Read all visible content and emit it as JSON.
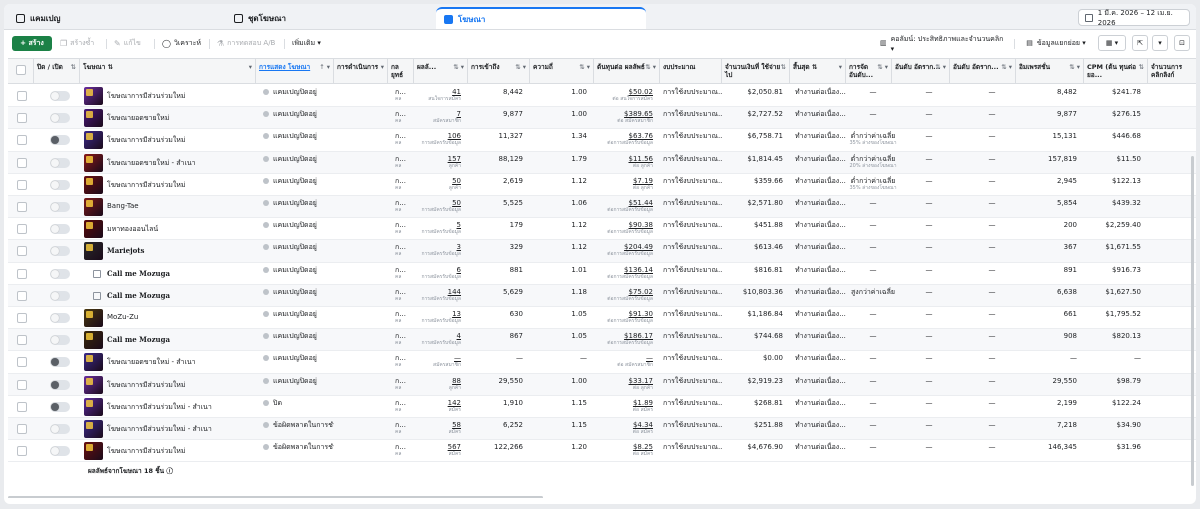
{
  "tabs": [
    {
      "label": "แคมเปญ",
      "icon": "folder-icon"
    },
    {
      "label": "ชุดโฆษณา",
      "icon": "grid-icon"
    },
    {
      "label": "โฆษณา",
      "icon": "ad-icon"
    }
  ],
  "date_range": "1 มี.ค. 2026 – 12 เม.ย. 2026",
  "toolbar": {
    "create": "+ สร้าง",
    "duplicate": "สร้างซ้ำ",
    "edit": "แก้ไข",
    "test": "วิเคราะห์",
    "ab_test": "การทดสอบ A/B",
    "more": "เพิ่มเติม ▾",
    "columns": "คอลัมน์: ประสิทธิภาพและจำนวนคลิก ▾",
    "breakdown": "ข้อมูลแยกย่อย ▾"
  },
  "headers": {
    "onoff": "ปิด / เปิด",
    "ad": "โฆษณา",
    "delivery": "การแสดง โฆษณา",
    "actions": "การดำเนินการ",
    "bid": "กล ยุทธ์",
    "results": "ผลลั...",
    "reach": "การเข้าถึง",
    "frequency": "ความถี่",
    "cost_per_result": "ต้นทุนต่อ ผลลัพธ์",
    "budget": "งบประมาณ",
    "amount_spent": "จำนวนเงินที่ ใช้จ่ายไป",
    "ends": "สิ้นสุด",
    "ranking": "การจัด อันดับ...",
    "quality": "อันดับ อัตราก...",
    "conv": "อันดับ อัตราก...",
    "impressions": "อิมเพรสชั่น",
    "cpm": "CPM (ต้น ทุนต่อยอ...",
    "clicks": "จำนวนการ คลิกลิงก์"
  },
  "delivery_labels": {
    "active": "แคมเปญปิดอยู่",
    "off": "ปิด",
    "error": "ข้อผิดพลาดในการชำระ"
  },
  "rows": [
    {
      "name": "โฆษณาการมีส่วนร่วมใหม่",
      "delivery": "แคมเปญปิดอยู่",
      "results": "41",
      "rsub": "สนใจการสมัคร",
      "reach": "8,442",
      "freq": "1.00",
      "cpr": "$50.02",
      "cprsub": "ต่อ สนใจการสมัคร",
      "budget": "การใช้งบประมาณ...",
      "spent": "$2,050.81",
      "ends": "ทำงานต่อเนื่อง...",
      "rank": "—",
      "rsub2": "",
      "q": "—",
      "c": "—",
      "impr": "8,482",
      "cpm": "$241.78",
      "thumb": "#6b2fa0",
      "toggle": "lt"
    },
    {
      "name": "โฆษณายอดขายใหม่",
      "delivery": "แคมเปญปิดอยู่",
      "results": "7",
      "rsub": "สมัครสมาชิก",
      "reach": "9,877",
      "freq": "1.00",
      "cpr": "$389.65",
      "cprsub": "ต่อ สมัครสมาชิก",
      "budget": "การใช้งบประมาณ...",
      "spent": "$2,727.52",
      "ends": "ทำงานต่อเนื่อง...",
      "rank": "—",
      "rsub2": "",
      "q": "—",
      "c": "—",
      "impr": "9,877",
      "cpm": "$276.15",
      "thumb": "#4a1a7a",
      "toggle": "lt"
    },
    {
      "name": "โฆษณาการมีส่วนร่วมใหม่",
      "delivery": "แคมเปญปิดอยู่",
      "results": "106",
      "rsub": "การสมัครรับข้อมูล",
      "reach": "11,327",
      "freq": "1.34",
      "cpr": "$63.76",
      "cprsub": "ต่อการสมัครรับข้อมูล",
      "budget": "การใช้งบประมาณ...",
      "spent": "$6,758.71",
      "ends": "ทำงานต่อเนื่อง...",
      "rank": "ต่ำกว่าค่าเฉลี่ย",
      "rsub2": "35% ล่างของโฆษณา",
      "q": "—",
      "c": "—",
      "impr": "15,131",
      "cpm": "$446.68",
      "thumb": "#3b2a8a",
      "toggle": "dk"
    },
    {
      "name": "โฆษณายอดขายใหม่ - สำเนา",
      "delivery": "แคมเปญปิดอยู่",
      "results": "157",
      "rsub": "ลูกค้า",
      "reach": "88,129",
      "freq": "1.79",
      "cpr": "$11.56",
      "cprsub": "ต่อ ลูกค้า",
      "budget": "การใช้งบประมาณ...",
      "spent": "$1,814.45",
      "ends": "ทำงานต่อเนื่อง...",
      "rank": "ต่ำกว่าค่าเฉลี่ย",
      "rsub2": "20% ล่างของโฆษณา",
      "q": "—",
      "c": "—",
      "impr": "157,819",
      "cpm": "$11.50",
      "thumb": "#8a1a1a",
      "toggle": "lt"
    },
    {
      "name": "โฆษณาการมีส่วนร่วมใหม่",
      "delivery": "แคมเปญปิดอยู่",
      "results": "50",
      "rsub": "ลูกค้า",
      "reach": "2,619",
      "freq": "1.12",
      "cpr": "$7.19",
      "cprsub": "ต่อ ลูกค้า",
      "budget": "การใช้งบประมาณ...",
      "spent": "$359.66",
      "ends": "ทำงานต่อเนื่อง...",
      "rank": "ต่ำกว่าค่าเฉลี่ย",
      "rsub2": "35% ล่างของโฆษณา",
      "q": "—",
      "c": "—",
      "impr": "2,945",
      "cpm": "$122.13",
      "thumb": "#6a1010",
      "toggle": "lt"
    },
    {
      "name": "Bang-Tae",
      "delivery": "แคมเปญปิดอยู่",
      "results": "50",
      "rsub": "การสมัครรับข้อมูล",
      "reach": "5,525",
      "freq": "1.06",
      "cpr": "$51.44",
      "cprsub": "ต่อการสมัครรับข้อมูล",
      "budget": "การใช้งบประมาณ...",
      "spent": "$2,571.80",
      "ends": "ทำงานต่อเนื่อง...",
      "rank": "—",
      "rsub2": "",
      "q": "—",
      "c": "—",
      "impr": "5,854",
      "cpm": "$439.32",
      "thumb": "#7a1a1a",
      "toggle": "lt"
    },
    {
      "name": "มหาทองออนไลน์",
      "delivery": "แคมเปญปิดอยู่",
      "results": "5",
      "rsub": "การสมัครรับข้อมูล",
      "reach": "179",
      "freq": "1.12",
      "cpr": "$90.38",
      "cprsub": "ต่อการสมัครรับข้อมูล",
      "budget": "การใช้งบประมาณ...",
      "spent": "$451.88",
      "ends": "ทำงานต่อเนื่อง...",
      "rank": "—",
      "rsub2": "",
      "q": "—",
      "c": "—",
      "impr": "200",
      "cpm": "$2,259.40",
      "thumb": "#5a0a0a",
      "toggle": "lt"
    },
    {
      "name": "Mariejots",
      "delivery": "แคมเปญปิดอยู่",
      "results": "3",
      "rsub": "การสมัครรับข้อมูล",
      "reach": "329",
      "freq": "1.12",
      "cpr": "$204.49",
      "cprsub": "ต่อการสมัครรับข้อมูล",
      "budget": "การใช้งบประมาณ...",
      "spent": "$613.46",
      "ends": "ทำงานต่อเนื่อง...",
      "rank": "—",
      "rsub2": "",
      "q": "—",
      "c": "—",
      "impr": "367",
      "cpm": "$1,671.55",
      "thumb": "#2a2a2a",
      "toggle": "lt",
      "bold": true
    },
    {
      "name": "Call me Mozuga",
      "delivery": "แคมเปญปิดอยู่",
      "results": "6",
      "rsub": "การสมัครรับข้อมูล",
      "reach": "881",
      "freq": "1.01",
      "cpr": "$136.14",
      "cprsub": "ต่อการสมัครรับข้อมูล",
      "budget": "การใช้งบประมาณ...",
      "spent": "$816.81",
      "ends": "ทำงานต่อเนื่อง...",
      "rank": "—",
      "rsub2": "",
      "q": "—",
      "c": "—",
      "impr": "891",
      "cpm": "$916.73",
      "thumb": "",
      "toggle": "lt",
      "bold": true
    },
    {
      "name": "Call me Mozuga",
      "delivery": "แคมเปญปิดอยู่",
      "results": "144",
      "rsub": "การสมัครรับข้อมูล",
      "reach": "5,629",
      "freq": "1.18",
      "cpr": "$75.02",
      "cprsub": "ต่อการสมัครรับข้อมูล",
      "budget": "การใช้งบประมาณ...",
      "spent": "$10,803.36",
      "ends": "ทำงานต่อเนื่อง...",
      "rank": "สูงกว่าค่าเฉลี่ย",
      "rsub2": "",
      "q": "—",
      "c": "—",
      "impr": "6,638",
      "cpm": "$1,627.50",
      "thumb": "",
      "toggle": "lt",
      "bold": true
    },
    {
      "name": "MoZu-Zu",
      "delivery": "แคมเปญปิดอยู่",
      "results": "13",
      "rsub": "การสมัครรับข้อมูล",
      "reach": "630",
      "freq": "1.05",
      "cpr": "$91.30",
      "cprsub": "ต่อการสมัครรับข้อมูล",
      "budget": "การใช้งบประมาณ...",
      "spent": "$1,186.84",
      "ends": "ทำงานต่อเนื่อง...",
      "rank": "—",
      "rsub2": "",
      "q": "—",
      "c": "—",
      "impr": "661",
      "cpm": "$1,795.52",
      "thumb": "#4a3a10",
      "toggle": "lt"
    },
    {
      "name": "Call me Mozuga",
      "delivery": "แคมเปญปิดอยู่",
      "results": "4",
      "rsub": "การสมัครรับข้อมูล",
      "reach": "867",
      "freq": "1.05",
      "cpr": "$186.17",
      "cprsub": "ต่อการสมัครรับข้อมูล",
      "budget": "การใช้งบประมาณ...",
      "spent": "$744.68",
      "ends": "ทำงานต่อเนื่อง...",
      "rank": "—",
      "rsub2": "",
      "q": "—",
      "c": "—",
      "impr": "908",
      "cpm": "$820.13",
      "thumb": "#3a2a0a",
      "toggle": "lt",
      "bold": true
    },
    {
      "name": "โฆษณายอดขายใหม่ - สำเนา",
      "delivery": "แคมเปญปิดอยู่",
      "results": "—",
      "rsub": "สมัครสมาชิก",
      "reach": "—",
      "freq": "—",
      "cpr": "—",
      "cprsub": "ต่อ สมัครสมาชิก",
      "budget": "การใช้งบประมาณ...",
      "spent": "$0.00",
      "ends": "ทำงานต่อเนื่อง...",
      "rank": "—",
      "rsub2": "",
      "q": "—",
      "c": "—",
      "impr": "—",
      "cpm": "—",
      "thumb": "#3b2a8a",
      "toggle": "dk"
    },
    {
      "name": "โฆษณาการมีส่วนร่วมใหม่",
      "delivery": "แคมเปญปิดอยู่",
      "results": "88",
      "rsub": "ลูกค้า",
      "reach": "29,550",
      "freq": "1.00",
      "cpr": "$33.17",
      "cprsub": "ต่อ ลูกค้า",
      "budget": "การใช้งบประมาณ...",
      "spent": "$2,919.23",
      "ends": "ทำงานต่อเนื่อง...",
      "rank": "—",
      "rsub2": "",
      "q": "—",
      "c": "—",
      "impr": "29,550",
      "cpm": "$98.79",
      "thumb": "#6b2fa0",
      "toggle": "dk"
    },
    {
      "name": "โฆษณาการมีส่วนร่วมใหม่ - สำเนา",
      "delivery": "ปิด",
      "results": "142",
      "rsub": "สมัคร",
      "reach": "1,910",
      "freq": "1.15",
      "cpr": "$1.89",
      "cprsub": "ต่อ สมัคร",
      "budget": "การใช้งบประมาณ...",
      "spent": "$268.81",
      "ends": "ทำงานต่อเนื่อง...",
      "rank": "—",
      "rsub2": "",
      "q": "—",
      "c": "—",
      "impr": "2,199",
      "cpm": "$122.24",
      "thumb": "#5a2a9a",
      "toggle": "dk"
    },
    {
      "name": "โฆษณาการมีส่วนร่วมใหม่ - สำเนา",
      "delivery": "ข้อผิดพลาดในการชำระ",
      "results": "58",
      "rsub": "สมัคร",
      "reach": "6,252",
      "freq": "1.15",
      "cpr": "$4.34",
      "cprsub": "ต่อ สมัคร",
      "budget": "การใช้งบประมาณ...",
      "spent": "$251.88",
      "ends": "ทำงานต่อเนื่อง...",
      "rank": "—",
      "rsub2": "",
      "q": "—",
      "c": "—",
      "impr": "7,218",
      "cpm": "$34.90",
      "thumb": "#3b2a8a",
      "toggle": "lt"
    },
    {
      "name": "โฆษณาการมีส่วนร่วมใหม่",
      "delivery": "ข้อผิดพลาดในการชำระ",
      "results": "567",
      "rsub": "สมัคร",
      "reach": "122,266",
      "freq": "1.20",
      "cpr": "$8.25",
      "cprsub": "ต่อ สมัคร",
      "budget": "การใช้งบประมาณ...",
      "spent": "$4,676.90",
      "ends": "ทำงานต่อเนื่อง...",
      "rank": "—",
      "rsub2": "",
      "q": "—",
      "c": "—",
      "impr": "146,345",
      "cpm": "$31.96",
      "thumb": "#6a1010",
      "toggle": "lt"
    }
  ],
  "footer": "ผลลัพธ์จากโฆษณา 18 ชิ้น",
  "colors": {
    "primary": "#1877f2",
    "create": "#1b8146"
  }
}
